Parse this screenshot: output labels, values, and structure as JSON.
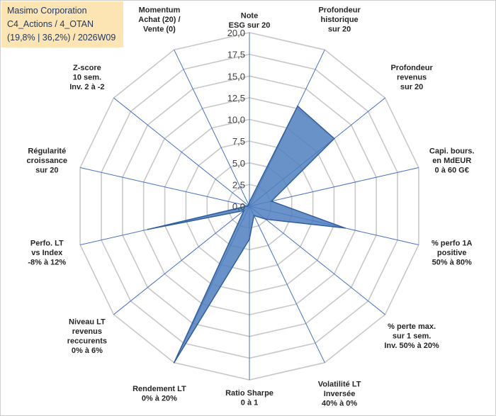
{
  "title_box": {
    "lines": [
      "Masimo Corporation",
      "C4_Actions / 4_OTAN",
      "(19,8% | 36,2%) / 2026W09"
    ]
  },
  "colors": {
    "fill": "#4f7fbf",
    "stroke": "#2f5f9f",
    "grid": "#c8c8c8",
    "axis": "#4472c4",
    "title_bg": "#fce4b3"
  },
  "chart_data": {
    "type": "radar",
    "r_range": [
      0,
      20
    ],
    "grid": true,
    "legend": "none",
    "r_ticks": [
      "0,0",
      "2,5",
      "5,0",
      "7,5",
      "10,0",
      "12,5",
      "15,0",
      "17,5",
      "20,0"
    ],
    "categories": [
      [
        "Note",
        "ESG sur 20"
      ],
      [
        "Profondeur",
        "historique",
        "sur 20"
      ],
      [
        "Profondeur",
        "revenus",
        "sur 20"
      ],
      [
        "Capi. bours.",
        "en MdEUR",
        "0 à 60 G€"
      ],
      [
        "% perfo 1A",
        "positive",
        "50% à 80%"
      ],
      [
        "% perte max.",
        "sur 1 sem.",
        "Inv. 50% à 20%"
      ],
      [
        "Volatilité LT",
        "Inversée",
        "40% à 0%"
      ],
      [
        "Ratio Sharpe",
        "0 à 1"
      ],
      [
        "Rendement LT",
        "0% à 20%"
      ],
      [
        "Niveau LT",
        "revenus",
        "reccurents",
        "0% à 6%"
      ],
      [
        "Perfo. LT",
        "vs Index",
        "-8% à 12%"
      ],
      [
        "Régularité",
        "croissance",
        "sur 20"
      ],
      [
        "Z-score",
        "10 sem.",
        "Inv. 2 à -2"
      ],
      [
        "Momentum",
        "Achat (20) /",
        "Vente (0)"
      ]
    ],
    "series": [
      {
        "values": [
          0.5,
          12.8,
          12.5,
          2.6,
          11.3,
          2.4,
          1.2,
          3.8,
          20.0,
          0.8,
          12.0,
          0.2,
          0.2,
          0.2
        ]
      }
    ]
  }
}
